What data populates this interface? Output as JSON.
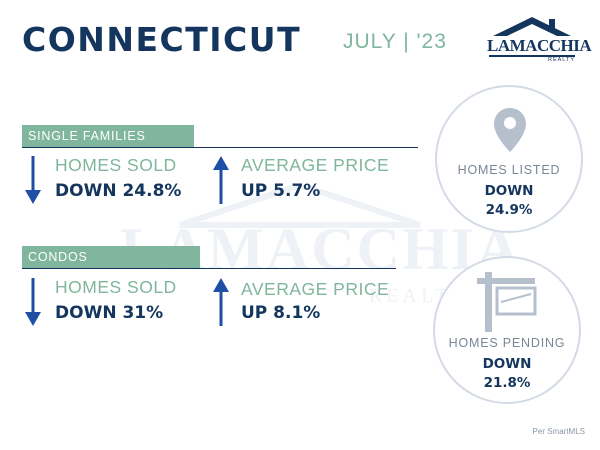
{
  "header": {
    "title": "CONNECTICUT",
    "date": "JULY | '23"
  },
  "logo": {
    "name": "LAMACCHIA",
    "sub": "REALTY"
  },
  "watermark": {
    "name": "LAMACCHIA",
    "sub": "REALTY"
  },
  "single_families": {
    "label": "SINGLE FAMILIES",
    "homes_sold": {
      "label": "HOMES SOLD",
      "value": "DOWN 24.8%",
      "direction": "down"
    },
    "average_price": {
      "label": "AVERAGE PRICE",
      "value": "UP 5.7%",
      "direction": "up"
    }
  },
  "condos": {
    "label": "CONDOS",
    "homes_sold": {
      "label": "HOMES SOLD",
      "value": "DOWN 31%",
      "direction": "down"
    },
    "average_price": {
      "label": "AVERAGE PRICE",
      "value": "UP 8.1%",
      "direction": "up"
    }
  },
  "homes_listed": {
    "label": "HOMES LISTED",
    "direction": "DOWN",
    "value": "24.9%",
    "icon": "map-pin-icon"
  },
  "homes_pending": {
    "label": "HOMES PENDING",
    "direction": "DOWN",
    "value": "21.8%",
    "icon": "sign-post-icon"
  },
  "source": "Per SmartMLS",
  "colors": {
    "navy": "#14365e",
    "green": "#7fb69d",
    "arrow_blue": "#1f4ea6",
    "circle_border": "#d4dbe6",
    "icon_gray": "#b6c0cd"
  }
}
